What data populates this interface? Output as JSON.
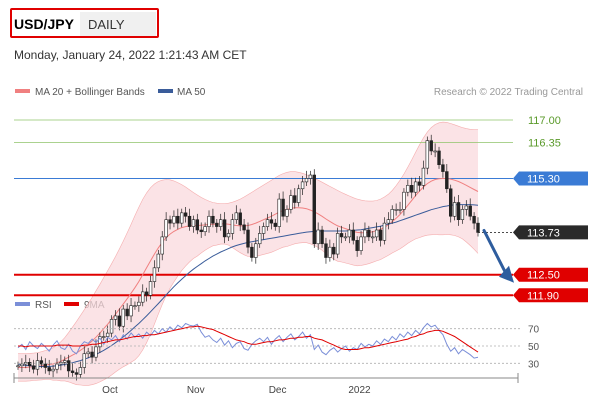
{
  "header": {
    "pair": "USD/JPY",
    "timeframe": "DAILY",
    "datetime": "Monday, January 24, 2022 1:21:43 AM CET",
    "credit": "Research © 2022 Trading Central"
  },
  "colors": {
    "frame": "#e00000",
    "bull": "#ffffff",
    "bear": "#222222",
    "ma20": "#f08080",
    "band": "#fadadd",
    "ma50": "#3a5c9a",
    "resistance": "#8fc46a",
    "pivot": "#3a7bd5",
    "support": "#e00000",
    "rsi": "#7b8fd8",
    "rsi_ma": "#e00000",
    "arrow": "#2e5d9e"
  },
  "chart_data": [
    {
      "type": "candlestick",
      "legend": [
        {
          "key": "ma20",
          "label": "MA 20 + Bollinger Bands"
        },
        {
          "key": "ma50",
          "label": "MA 50"
        }
      ],
      "ylim": [
        112.2,
        117.35
      ],
      "x_ticks": [
        "Oct",
        "Nov",
        "Dec",
        "2022"
      ],
      "levels": [
        {
          "value": 117.0,
          "label": "117.00",
          "kind": "resistance"
        },
        {
          "value": 116.35,
          "label": "116.35",
          "kind": "resistance"
        },
        {
          "value": 115.3,
          "label": "115.30",
          "kind": "pivot"
        },
        {
          "value": 113.73,
          "label": "113.73",
          "kind": "last"
        },
        {
          "value": 112.5,
          "label": "112.50",
          "kind": "support"
        },
        {
          "value": 111.9,
          "label": "111.90",
          "kind": "support"
        }
      ],
      "close_series": [
        109.85,
        109.9,
        109.95,
        109.85,
        109.75,
        110.0,
        109.9,
        109.8,
        109.7,
        109.75,
        109.9,
        109.95,
        110.0,
        109.7,
        109.65,
        109.6,
        109.8,
        110.2,
        110.25,
        110.1,
        110.4,
        110.7,
        110.7,
        110.8,
        111.2,
        111.3,
        111.0,
        111.5,
        111.3,
        111.6,
        111.6,
        111.7,
        112.0,
        111.9,
        112.3,
        112.7,
        113.1,
        113.6,
        114.1,
        114.0,
        114.2,
        114.0,
        114.3,
        114.2,
        113.9,
        114.1,
        113.8,
        113.75,
        113.9,
        114.2,
        114.0,
        113.9,
        114.1,
        113.6,
        113.7,
        114.1,
        114.3,
        113.95,
        113.8,
        113.3,
        113.0,
        113.4,
        113.7,
        113.9,
        114.1,
        114.0,
        113.9,
        114.7,
        114.2,
        114.4,
        114.8,
        114.6,
        115.0,
        115.2,
        115.3,
        115.4,
        113.4,
        113.8,
        113.4,
        113.0,
        113.3,
        113.1,
        113.7,
        113.6,
        113.6,
        113.8,
        113.5,
        113.2,
        113.6,
        113.8,
        113.6,
        113.6,
        113.8,
        113.5,
        114.0,
        114.1,
        114.4,
        114.4,
        114.4,
        114.9,
        115.1,
        114.9,
        115.2,
        115.1,
        115.6,
        116.4,
        116.1,
        116.1,
        115.7,
        115.5,
        115.0,
        114.2,
        114.6,
        114.1,
        114.4,
        114.5,
        114.2,
        114.0,
        113.73
      ],
      "ma20": [
        109.8,
        109.8,
        109.8,
        109.81,
        109.82,
        109.83,
        109.85,
        109.87,
        109.89,
        109.9,
        109.94,
        109.98,
        110.04,
        110.1,
        110.16,
        110.22,
        110.3,
        110.38,
        110.47,
        110.57,
        110.68,
        110.8,
        110.93,
        111.06,
        111.2,
        111.35,
        111.5,
        111.65,
        111.8,
        111.96,
        112.12,
        112.3,
        112.5,
        112.7,
        112.9,
        113.1,
        113.28,
        113.44,
        113.58,
        113.68,
        113.76,
        113.82,
        113.87,
        113.9,
        113.92,
        113.93,
        113.93,
        113.94,
        113.95,
        113.96,
        113.97,
        113.97,
        113.98,
        113.98,
        113.97,
        113.95,
        113.93,
        113.92,
        113.92,
        113.93,
        113.96,
        114.0,
        114.05,
        114.1,
        114.15,
        114.2,
        114.26,
        114.32,
        114.37,
        114.4,
        114.43,
        114.45,
        114.45,
        114.44,
        114.42,
        114.38,
        114.33,
        114.27,
        114.2,
        114.12,
        114.05,
        113.98,
        113.92,
        113.88,
        113.84,
        113.8,
        113.76,
        113.73,
        113.72,
        113.72,
        113.73,
        113.75,
        113.78,
        113.82,
        113.88,
        113.95,
        114.04,
        114.14,
        114.25,
        114.38,
        114.52,
        114.66,
        114.8,
        114.93,
        115.05,
        115.15,
        115.22,
        115.27,
        115.29,
        115.3,
        115.3,
        115.28,
        115.25,
        115.21,
        115.16,
        115.1,
        115.04,
        114.98,
        114.92
      ],
      "bb_upper": [
        110.2,
        110.2,
        110.2,
        110.21,
        110.22,
        110.23,
        110.26,
        110.29,
        110.33,
        110.37,
        110.45,
        110.55,
        110.67,
        110.82,
        110.98,
        111.14,
        111.31,
        111.48,
        111.66,
        111.84,
        112.03,
        112.22,
        112.42,
        112.62,
        112.82,
        113.03,
        113.25,
        113.48,
        113.72,
        113.97,
        114.22,
        114.46,
        114.69,
        114.88,
        115.03,
        115.14,
        115.21,
        115.25,
        115.27,
        115.26,
        115.23,
        115.18,
        115.12,
        115.05,
        114.97,
        114.89,
        114.82,
        114.75,
        114.69,
        114.64,
        114.6,
        114.58,
        114.57,
        114.57,
        114.58,
        114.61,
        114.65,
        114.7,
        114.76,
        114.83,
        114.9,
        114.97,
        115.04,
        115.11,
        115.18,
        115.25,
        115.32,
        115.39,
        115.44,
        115.48,
        115.5,
        115.5,
        115.48,
        115.45,
        115.41,
        115.36,
        115.31,
        115.25,
        115.19,
        115.13,
        115.07,
        115.01,
        114.95,
        114.89,
        114.84,
        114.79,
        114.74,
        114.7,
        114.67,
        114.65,
        114.64,
        114.64,
        114.66,
        114.7,
        114.76,
        114.84,
        114.95,
        115.09,
        115.25,
        115.43,
        115.63,
        115.84,
        116.06,
        116.28,
        116.48,
        116.65,
        116.78,
        116.87,
        116.92,
        116.94,
        116.93,
        116.9,
        116.86,
        116.82,
        116.78,
        116.75,
        116.73,
        116.72,
        116.72
      ],
      "bb_lower": [
        109.4,
        109.4,
        109.4,
        109.41,
        109.42,
        109.43,
        109.44,
        109.45,
        109.45,
        109.43,
        109.43,
        109.41,
        109.41,
        109.38,
        109.34,
        109.3,
        109.29,
        109.28,
        109.28,
        109.3,
        109.33,
        109.38,
        109.44,
        109.5,
        109.58,
        109.67,
        109.75,
        109.82,
        109.88,
        109.95,
        110.02,
        110.14,
        110.31,
        110.52,
        110.77,
        111.06,
        111.35,
        111.63,
        111.89,
        112.1,
        112.29,
        112.46,
        112.62,
        112.75,
        112.87,
        112.97,
        113.04,
        113.13,
        113.21,
        113.28,
        113.34,
        113.36,
        113.39,
        113.39,
        113.36,
        113.29,
        113.21,
        113.14,
        113.08,
        113.03,
        113.02,
        113.03,
        113.06,
        113.09,
        113.12,
        113.15,
        113.2,
        113.25,
        113.3,
        113.32,
        113.36,
        113.4,
        113.42,
        113.43,
        113.43,
        113.4,
        113.35,
        113.29,
        113.21,
        113.11,
        113.03,
        112.95,
        112.89,
        112.87,
        112.84,
        112.81,
        112.78,
        112.76,
        112.77,
        112.79,
        112.82,
        112.86,
        112.9,
        112.94,
        113.0,
        113.06,
        113.13,
        113.19,
        113.25,
        113.33,
        113.41,
        113.48,
        113.54,
        113.58,
        113.62,
        113.65,
        113.66,
        113.67,
        113.66,
        113.66,
        113.67,
        113.66,
        113.64,
        113.6,
        113.54,
        113.45,
        113.35,
        113.24,
        113.12
      ],
      "ma50": [
        109.9,
        109.88,
        109.86,
        109.85,
        109.84,
        109.83,
        109.83,
        109.83,
        109.83,
        109.84,
        109.85,
        109.87,
        109.89,
        109.91,
        109.94,
        109.97,
        110.0,
        110.04,
        110.08,
        110.13,
        110.18,
        110.24,
        110.3,
        110.37,
        110.44,
        110.52,
        110.6,
        110.69,
        110.78,
        110.88,
        110.98,
        111.08,
        111.19,
        111.3,
        111.42,
        111.54,
        111.66,
        111.78,
        111.91,
        112.03,
        112.15,
        112.26,
        112.37,
        112.47,
        112.57,
        112.66,
        112.74,
        112.82,
        112.9,
        112.97,
        113.04,
        113.1,
        113.16,
        113.21,
        113.26,
        113.31,
        113.35,
        113.38,
        113.41,
        113.44,
        113.46,
        113.48,
        113.5,
        113.52,
        113.54,
        113.56,
        113.58,
        113.6,
        113.62,
        113.64,
        113.66,
        113.68,
        113.7,
        113.72,
        113.74,
        113.75,
        113.76,
        113.77,
        113.77,
        113.77,
        113.77,
        113.77,
        113.77,
        113.77,
        113.77,
        113.78,
        113.79,
        113.8,
        113.81,
        113.83,
        113.85,
        113.87,
        113.89,
        113.91,
        113.94,
        113.97,
        114.0,
        114.03,
        114.07,
        114.11,
        114.15,
        114.19,
        114.23,
        114.27,
        114.31,
        114.35,
        114.39,
        114.42,
        114.45,
        114.48,
        114.5,
        114.52,
        114.53,
        114.54,
        114.54,
        114.54,
        114.54,
        114.53,
        114.52
      ]
    },
    {
      "type": "line",
      "legend": [
        {
          "key": "rsi",
          "label": "RSI"
        },
        {
          "key": "rsi_ma",
          "label": "9MA"
        }
      ],
      "ylim": [
        20,
        80
      ],
      "y_ticks": [
        70,
        50,
        30
      ],
      "rsi": [
        48,
        52,
        46,
        55,
        50,
        47,
        53,
        49,
        44,
        51,
        56,
        48,
        46,
        52,
        44,
        41,
        50,
        55,
        53,
        58,
        54,
        59,
        52,
        60,
        57,
        62,
        55,
        63,
        58,
        65,
        60,
        64,
        59,
        66,
        62,
        68,
        64,
        70,
        66,
        72,
        68,
        74,
        71,
        76,
        74,
        73,
        75,
        66,
        60,
        62,
        57,
        54,
        59,
        51,
        56,
        48,
        53,
        55,
        47,
        45,
        52,
        56,
        59,
        55,
        60,
        52,
        58,
        62,
        55,
        60,
        64,
        57,
        61,
        66,
        59,
        63,
        46,
        51,
        43,
        40,
        45,
        48,
        43,
        47,
        50,
        44,
        48,
        46,
        53,
        49,
        52,
        50,
        56,
        52,
        58,
        55,
        61,
        57,
        64,
        60,
        66,
        62,
        68,
        64,
        71,
        76,
        72,
        74,
        68,
        63,
        52,
        44,
        48,
        41,
        46,
        43,
        40,
        36,
        37
      ],
      "rsi_ma": [
        50,
        50,
        49,
        50,
        50,
        50,
        50,
        50,
        50,
        50,
        51,
        51,
        51,
        51,
        50,
        50,
        50,
        51,
        51,
        52,
        52,
        53,
        54,
        55,
        56,
        57,
        57,
        58,
        59,
        60,
        61,
        61,
        62,
        62,
        63,
        63,
        64,
        65,
        66,
        67,
        68,
        69,
        70,
        71,
        72,
        72,
        73,
        72,
        71,
        70,
        69,
        67,
        65,
        63,
        61,
        59,
        57,
        56,
        55,
        53,
        52,
        52,
        53,
        54,
        55,
        55,
        56,
        57,
        57,
        58,
        59,
        59,
        60,
        60,
        61,
        61,
        59,
        58,
        57,
        55,
        53,
        51,
        49,
        47,
        46,
        46,
        46,
        46,
        47,
        48,
        48,
        49,
        50,
        51,
        52,
        53,
        54,
        55,
        56,
        57,
        58,
        60,
        61,
        63,
        64,
        66,
        67,
        68,
        68,
        67,
        65,
        63,
        61,
        58,
        55,
        52,
        49,
        46,
        43
      ]
    }
  ]
}
